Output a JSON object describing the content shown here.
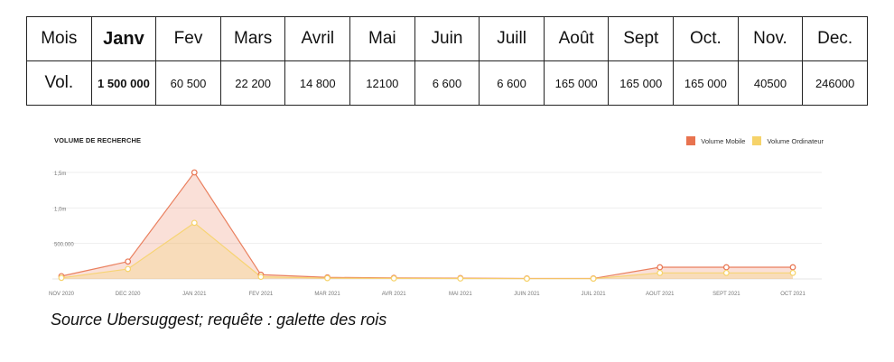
{
  "table": {
    "header": [
      "Mois",
      "Janv",
      "Fev",
      "Mars",
      "Avril",
      "Mai",
      "Juin",
      "Juill",
      "Août",
      "Sept",
      "Oct.",
      "Nov.",
      "Dec."
    ],
    "values": [
      "Vol.",
      "1 500 000",
      "60 500",
      "22 200",
      "14 800",
      "12100",
      "6 600",
      "6 600",
      "165 000",
      "165 000",
      "165 000",
      "40500",
      "246000"
    ]
  },
  "colors": {
    "mobile": "#e8734f",
    "desktop": "#f6d36a"
  },
  "chart_data": {
    "type": "area",
    "title": "VOLUME DE RECHERCHE",
    "categories": [
      "NOV 2020",
      "DEC 2020",
      "JAN 2021",
      "FEV 2021",
      "MAR 2021",
      "AVR 2021",
      "MAI 2021",
      "JUIN 2021",
      "JUIL 2021",
      "AOUT 2021",
      "SEPT 2021",
      "OCT 2021"
    ],
    "series": [
      {
        "name": "Volume Mobile",
        "values": [
          40000,
          245000,
          1500000,
          60000,
          22000,
          15000,
          12000,
          7000,
          7000,
          165000,
          165000,
          165000
        ]
      },
      {
        "name": "Volume Ordinateur",
        "values": [
          15000,
          140000,
          790000,
          30000,
          12000,
          8000,
          6000,
          4000,
          4000,
          85000,
          85000,
          85000
        ]
      }
    ],
    "yticks": [
      {
        "value": 500000,
        "label": "500.000"
      },
      {
        "value": 1000000,
        "label": "1,0m"
      },
      {
        "value": 1500000,
        "label": "1,5m"
      }
    ],
    "ylim": [
      0,
      1500000
    ],
    "legend_position": "top-right",
    "grid": true
  },
  "caption": "Source Ubersuggest; requête : galette des rois"
}
